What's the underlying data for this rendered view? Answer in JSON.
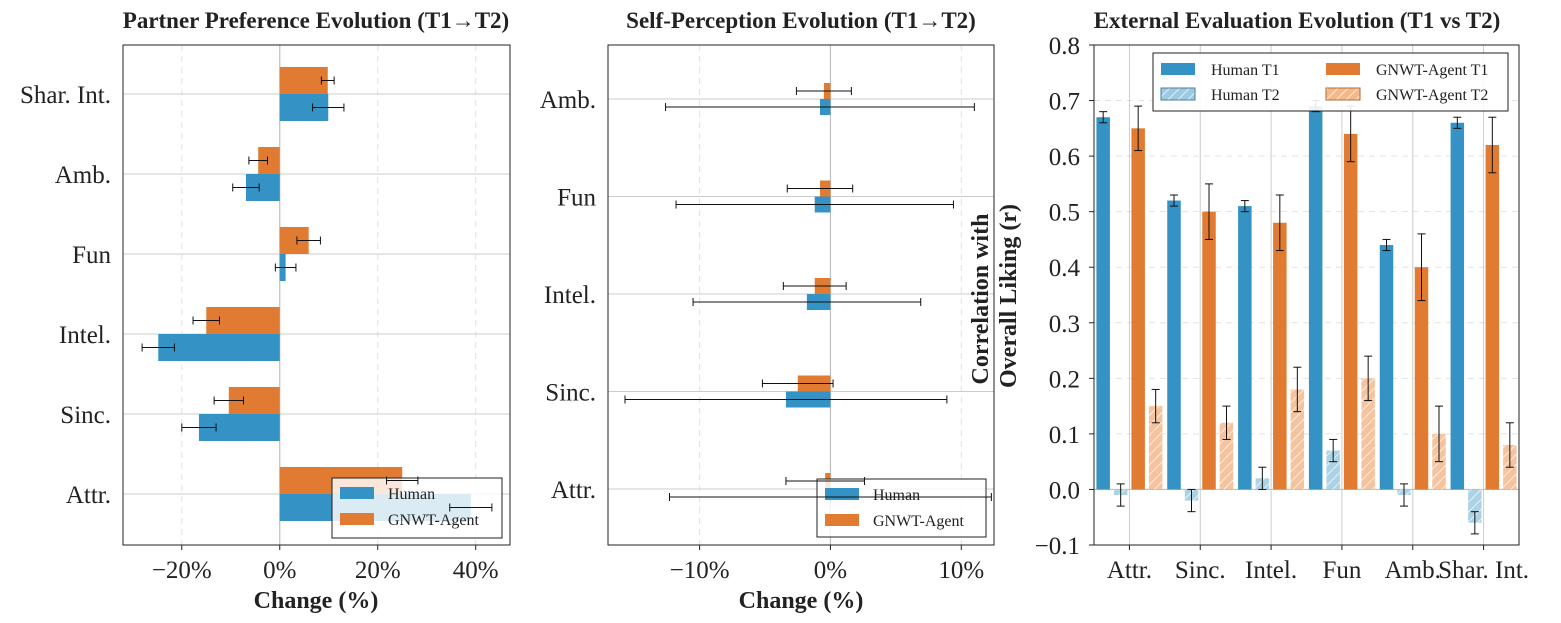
{
  "colors": {
    "human": "#3592c4",
    "agent": "#e07b31",
    "human_t2": "#9ecae1",
    "agent_t2": "#f3b98d"
  },
  "chart_data": [
    {
      "type": "bar",
      "orientation": "horizontal",
      "title": "Partner Preference Evolution (T1→T2)",
      "xlabel": "Change (%)",
      "ylabel": "",
      "categories": [
        "Attr.",
        "Sinc.",
        "Intel.",
        "Fun",
        "Amb.",
        "Shar. Int."
      ],
      "xlim": [
        -32,
        47
      ],
      "xticks": [
        -20,
        0,
        20,
        40
      ],
      "xtick_labels": [
        "−20%",
        "0%",
        "20%",
        "40%"
      ],
      "legend": {
        "position": "lower-right",
        "entries": [
          "Human",
          "GNWT-Agent"
        ]
      },
      "series": [
        {
          "name": "Human",
          "values": [
            39,
            -16.5,
            -24.8,
            1.2,
            -6.9,
            9.9
          ],
          "errors": [
            4.3,
            3.5,
            3.3,
            2.1,
            2.7,
            3.2
          ]
        },
        {
          "name": "GNWT-Agent",
          "values": [
            25,
            -10.4,
            -15,
            5.9,
            -4.4,
            9.8
          ],
          "errors": [
            3.2,
            3,
            2.7,
            2.4,
            1.9,
            1.3
          ]
        }
      ]
    },
    {
      "type": "bar",
      "orientation": "horizontal",
      "title": "Self-Perception Evolution (T1→T2)",
      "xlabel": "Change (%)",
      "ylabel": "",
      "categories": [
        "Attr.",
        "Sinc.",
        "Intel.",
        "Fun",
        "Amb."
      ],
      "xlim": [
        -17,
        12.5
      ],
      "xticks": [
        -10,
        0,
        10
      ],
      "xtick_labels": [
        "−10%",
        "0%",
        "10%"
      ],
      "legend": {
        "position": "lower-right",
        "entries": [
          "Human",
          "GNWT-Agent"
        ]
      },
      "series": [
        {
          "name": "Human",
          "values": [
            0,
            -3.4,
            -1.8,
            -1.2,
            -0.8
          ],
          "errors": [
            12.3,
            12.3,
            8.7,
            10.6,
            11.8
          ]
        },
        {
          "name": "GNWT-Agent",
          "values": [
            -0.4,
            -2.5,
            -1.2,
            -0.8,
            -0.5
          ],
          "errors": [
            3,
            2.7,
            2.4,
            2.5,
            2.1
          ]
        }
      ]
    },
    {
      "type": "bar",
      "orientation": "vertical",
      "title": "External Evaluation Evolution (T1 vs T2)",
      "xlabel": "",
      "ylabel_lines": [
        "Correlation with",
        "Overall Liking (r)"
      ],
      "categories": [
        "Attr.",
        "Sinc.",
        "Intel.",
        "Fun",
        "Amb.",
        "Shar. Int."
      ],
      "ylim": [
        -0.1,
        0.8
      ],
      "yticks": [
        -0.1,
        0,
        0.1,
        0.2,
        0.3,
        0.4,
        0.5,
        0.6,
        0.7,
        0.8
      ],
      "ytick_labels": [
        "−0.1",
        "0.0",
        "0.1",
        "0.2",
        "0.3",
        "0.4",
        "0.5",
        "0.6",
        "0.7",
        "0.8"
      ],
      "legend": {
        "position": "top",
        "entries": [
          "Human T1",
          "GNWT-Agent T1",
          "Human T2",
          "GNWT-Agent T2"
        ]
      },
      "series": [
        {
          "name": "Human T1",
          "values": [
            0.67,
            0.52,
            0.51,
            0.69,
            0.44,
            0.66
          ],
          "errors": [
            0.01,
            0.01,
            0.01,
            0.01,
            0.01,
            0.01
          ]
        },
        {
          "name": "Human T2",
          "values": [
            -0.01,
            -0.02,
            0.02,
            0.07,
            -0.01,
            -0.06
          ],
          "errors": [
            0.02,
            0.02,
            0.02,
            0.02,
            0.02,
            0.02
          ]
        },
        {
          "name": "GNWT-Agent T1",
          "values": [
            0.65,
            0.5,
            0.48,
            0.64,
            0.4,
            0.62
          ],
          "errors": [
            0.04,
            0.05,
            0.05,
            0.05,
            0.06,
            0.05
          ]
        },
        {
          "name": "GNWT-Agent T2",
          "values": [
            0.15,
            0.12,
            0.18,
            0.2,
            0.1,
            0.08
          ],
          "errors": [
            0.03,
            0.03,
            0.04,
            0.04,
            0.05,
            0.04
          ]
        }
      ]
    }
  ]
}
